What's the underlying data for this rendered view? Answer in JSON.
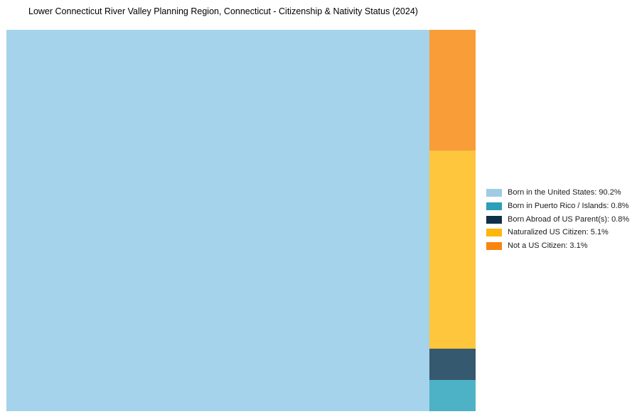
{
  "page": {
    "background_color": "#ffffff"
  },
  "chart_data": {
    "type": "treemap",
    "title": "Lower Connecticut River Valley Planning Region, Connecticut - Citizenship & Nativity Status (2024)",
    "unit": "%",
    "legend_position": "right",
    "categories": [
      "Born in the United States",
      "Born in Puerto Rico / Islands",
      "Born Abroad of US Parent(s)",
      "Naturalized US Citizen",
      "Not a US Citizen"
    ],
    "values": [
      90.2,
      0.8,
      0.8,
      5.1,
      3.1
    ],
    "colors": [
      "#9FCBE5",
      "#2B9EB9",
      "#0E3048",
      "#FEB60A",
      "#F8850F"
    ],
    "layout_note": "Large left rectangle = Born in the United States; right column stacked top-to-bottom: Not a US Citizen, Naturalized US Citizen, Born Abroad of US Parent(s), Born in Puerto Rico / Islands"
  },
  "treemap": {
    "left_segment": {
      "slug": "born-in-the-united-states",
      "label": "Born in the United States",
      "value": 90.2,
      "width_pct": 90.2,
      "fill": "#A5D3EB"
    },
    "right_column": {
      "width_pct": 9.8,
      "segments": [
        {
          "slug": "not-a-us-citizen",
          "label": "Not a US Citizen",
          "value": 3.1,
          "height_pct": 31.63,
          "fill": "#F99D38"
        },
        {
          "slug": "naturalized-us-citizen",
          "label": "Naturalized US Citizen",
          "value": 5.1,
          "height_pct": 52.04,
          "fill": "#FDC63C"
        },
        {
          "slug": "born-abroad-of-us-parents",
          "label": "Born Abroad of US Parent(s)",
          "value": 0.8,
          "height_pct": 8.16,
          "fill": "#35596E"
        },
        {
          "slug": "born-in-puerto-rico-islands",
          "label": "Born in Puerto Rico / Islands",
          "value": 0.8,
          "height_pct": 8.17,
          "fill": "#4DB2C6"
        }
      ]
    }
  },
  "legend": {
    "items": [
      {
        "slug": "born-in-the-united-states",
        "label": "Born in the United States: 90.2%",
        "swatch_color": "#9FCBE5"
      },
      {
        "slug": "born-in-puerto-rico-islands",
        "label": "Born in Puerto Rico / Islands: 0.8%",
        "swatch_color": "#2B9EB9"
      },
      {
        "slug": "born-abroad-of-us-parents",
        "label": "Born Abroad of US Parent(s): 0.8%",
        "swatch_color": "#0E3048"
      },
      {
        "slug": "naturalized-us-citizen",
        "label": "Naturalized US Citizen: 5.1%",
        "swatch_color": "#FEB60A"
      },
      {
        "slug": "not-a-us-citizen",
        "label": "Not a US Citizen: 3.1%",
        "swatch_color": "#F8850F"
      }
    ]
  }
}
